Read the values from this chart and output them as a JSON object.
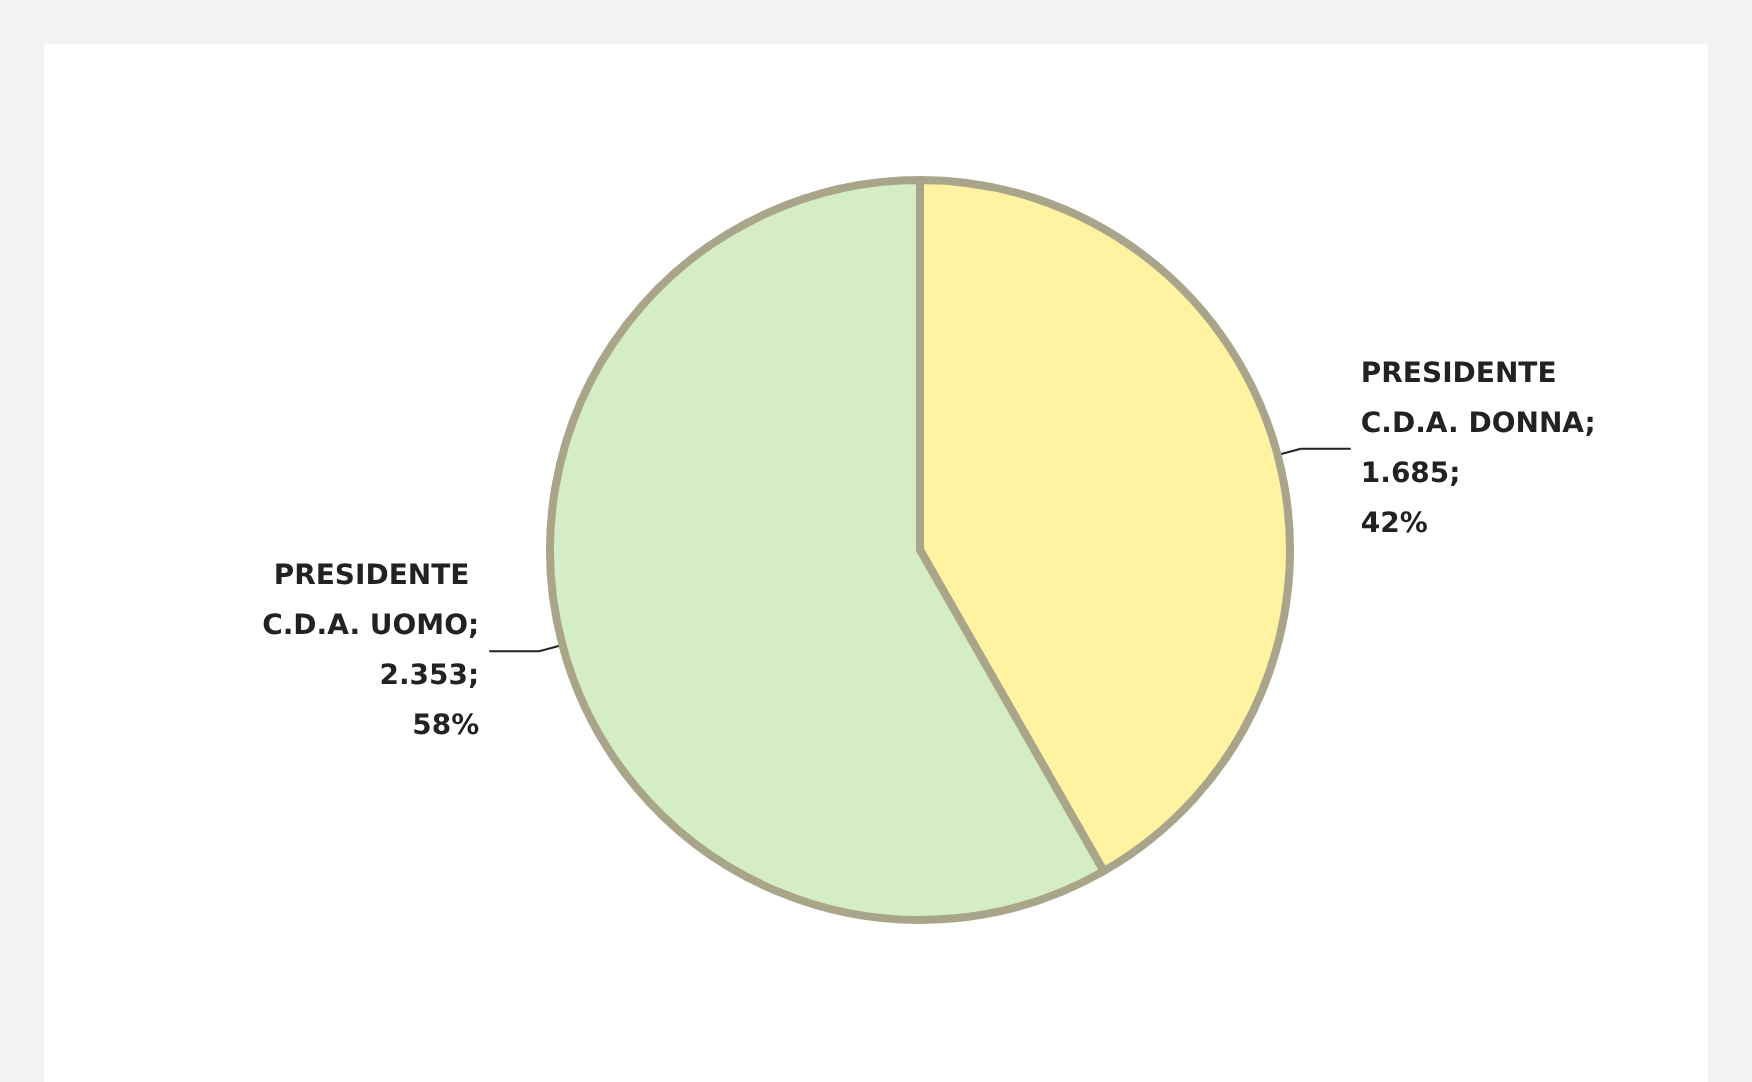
{
  "chart_data": {
    "type": "pie",
    "categories": [
      "PRESIDENTE C.D.A. DONNA",
      "PRESIDENTE C.D.A. UOMO"
    ],
    "values": [
      1685,
      2353
    ],
    "colors": [
      "#fff2a0",
      "#d4edc4"
    ],
    "value_labels": [
      "; 1.685; 42%",
      "; 2.353; 58%"
    ]
  }
}
